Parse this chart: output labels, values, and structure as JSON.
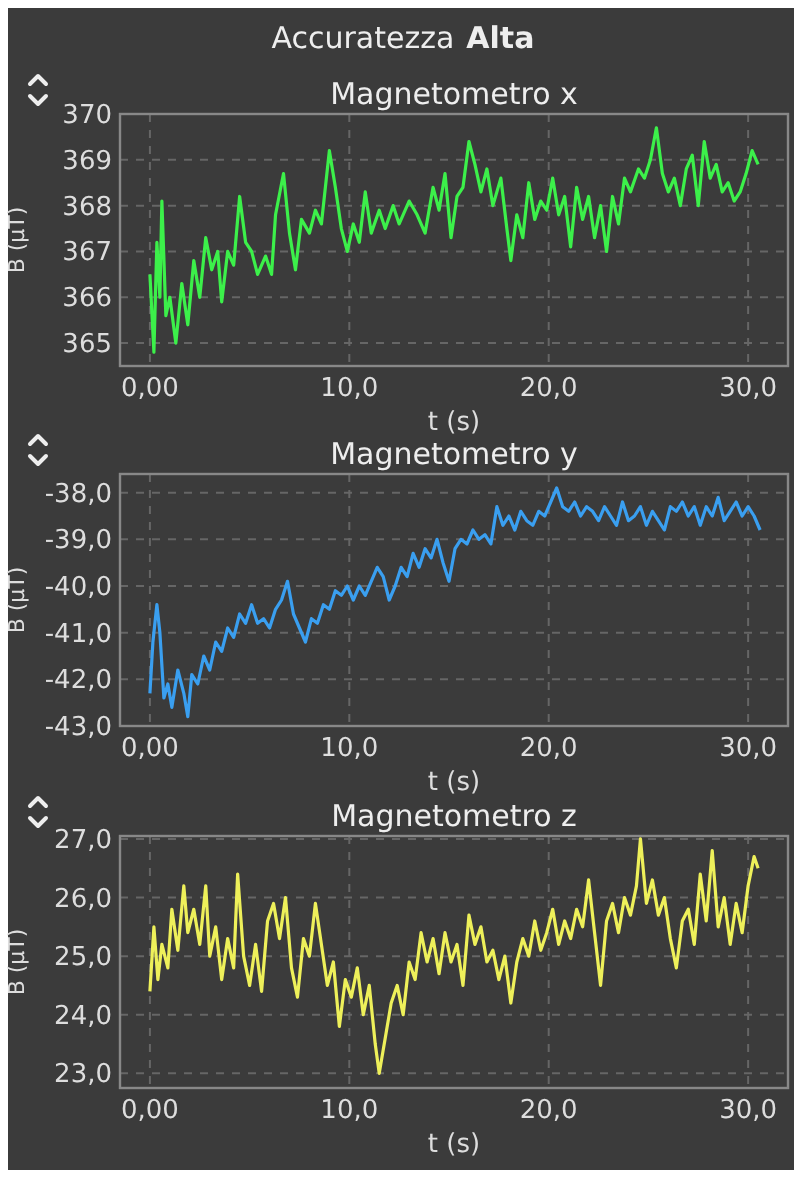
{
  "chart_data": [
    {
      "type": "line",
      "title": "Magnetometro x",
      "xlabel": "t (s)",
      "ylabel": "B (µT)",
      "annotations": [
        "Accuratezza",
        "Alta"
      ],
      "grid": true,
      "xlim": [
        -1.5,
        32
      ],
      "xticks": [
        {
          "value": 0,
          "label": "0,00"
        },
        {
          "value": 10,
          "label": "10,0"
        },
        {
          "value": 20,
          "label": "20,0"
        },
        {
          "value": 30,
          "label": "30,0"
        }
      ],
      "ylim": [
        364.5,
        370
      ],
      "yticks": [
        365,
        366,
        367,
        368,
        369,
        370
      ],
      "series": [
        {
          "color": "#3cf04a",
          "x": [
            0,
            0.2,
            0.35,
            0.5,
            0.6,
            0.8,
            1.0,
            1.3,
            1.6,
            1.9,
            2.2,
            2.5,
            2.8,
            3.1,
            3.4,
            3.6,
            3.9,
            4.2,
            4.5,
            4.8,
            5.1,
            5.4,
            5.8,
            6.1,
            6.3,
            6.7,
            7.0,
            7.3,
            7.6,
            8.0,
            8.3,
            8.6,
            9.0,
            9.3,
            9.6,
            9.9,
            10.2,
            10.5,
            10.8,
            11.1,
            11.5,
            11.8,
            12.2,
            12.5,
            13.0,
            13.4,
            13.8,
            14.2,
            14.5,
            14.8,
            15.1,
            15.4,
            15.7,
            16.0,
            16.3,
            16.6,
            16.9,
            17.2,
            17.6,
            17.9,
            18.1,
            18.4,
            18.7,
            19.0,
            19.3,
            19.6,
            19.9,
            20.2,
            20.5,
            20.8,
            21.1,
            21.4,
            21.7,
            22.0,
            22.3,
            22.6,
            22.9,
            23.2,
            23.5,
            23.8,
            24.1,
            24.5,
            24.8,
            25.1,
            25.4,
            25.7,
            26.0,
            26.3,
            26.6,
            26.9,
            27.2,
            27.5,
            27.8,
            28.1,
            28.4,
            28.7,
            29.0,
            29.3,
            29.6,
            29.9,
            30.2,
            30.5
          ],
          "values": [
            366.5,
            364.8,
            367.2,
            366.0,
            368.1,
            365.6,
            366.0,
            365.0,
            366.3,
            365.4,
            366.8,
            366.0,
            367.3,
            366.6,
            367.0,
            365.9,
            367.0,
            366.7,
            368.2,
            367.2,
            367.0,
            366.5,
            366.9,
            366.5,
            367.8,
            368.7,
            367.4,
            366.6,
            367.7,
            367.4,
            367.9,
            367.6,
            369.2,
            368.4,
            367.5,
            367.0,
            367.6,
            367.2,
            368.3,
            367.4,
            367.9,
            367.5,
            368.0,
            367.6,
            368.1,
            367.8,
            367.4,
            368.4,
            367.9,
            368.7,
            367.3,
            368.2,
            368.4,
            369.4,
            368.9,
            368.3,
            368.8,
            368.0,
            368.6,
            367.5,
            366.8,
            367.8,
            367.3,
            368.5,
            367.7,
            368.1,
            367.9,
            368.6,
            367.8,
            368.2,
            367.1,
            368.4,
            367.7,
            368.2,
            367.3,
            368.0,
            367.0,
            368.2,
            367.6,
            368.6,
            368.3,
            368.8,
            368.6,
            369.0,
            369.7,
            368.7,
            368.3,
            368.6,
            368.0,
            368.8,
            369.1,
            368.0,
            369.4,
            368.6,
            368.9,
            368.3,
            368.5,
            368.1,
            368.3,
            368.7,
            369.2,
            368.9
          ]
        }
      ]
    },
    {
      "type": "line",
      "title": "Magnetometro y",
      "xlabel": "t (s)",
      "ylabel": "B (µT)",
      "grid": true,
      "xlim": [
        -1.5,
        32
      ],
      "xticks": [
        {
          "value": 0,
          "label": "0,00"
        },
        {
          "value": 10,
          "label": "10,0"
        },
        {
          "value": 20,
          "label": "20,0"
        },
        {
          "value": 30,
          "label": "30,0"
        }
      ],
      "ylim": [
        -43,
        -37.6
      ],
      "yticks": [
        {
          "value": -43,
          "label": "-43,0"
        },
        {
          "value": -42,
          "label": "-42,0"
        },
        {
          "value": -41,
          "label": "-41,0"
        },
        {
          "value": -40,
          "label": "-40,0"
        },
        {
          "value": -39,
          "label": "-39,0"
        },
        {
          "value": -38,
          "label": "-38,0"
        }
      ],
      "series": [
        {
          "color": "#3a9ff0",
          "x": [
            0,
            0.15,
            0.35,
            0.5,
            0.7,
            0.9,
            1.1,
            1.4,
            1.7,
            1.9,
            2.1,
            2.4,
            2.7,
            3.0,
            3.3,
            3.6,
            3.9,
            4.2,
            4.5,
            4.8,
            5.1,
            5.4,
            5.7,
            6.0,
            6.3,
            6.6,
            6.9,
            7.2,
            7.5,
            7.8,
            8.1,
            8.4,
            8.7,
            9.0,
            9.3,
            9.6,
            9.9,
            10.2,
            10.5,
            10.8,
            11.1,
            11.4,
            11.7,
            12.0,
            12.3,
            12.6,
            12.9,
            13.2,
            13.5,
            13.8,
            14.1,
            14.4,
            14.7,
            15.0,
            15.3,
            15.6,
            15.9,
            16.2,
            16.5,
            16.8,
            17.1,
            17.4,
            17.7,
            18.0,
            18.3,
            18.6,
            18.9,
            19.2,
            19.5,
            19.8,
            20.1,
            20.4,
            20.7,
            21.0,
            21.3,
            21.6,
            21.9,
            22.2,
            22.5,
            22.8,
            23.1,
            23.4,
            23.7,
            24.0,
            24.3,
            24.6,
            24.9,
            25.2,
            25.5,
            25.8,
            26.1,
            26.4,
            26.7,
            27.0,
            27.3,
            27.6,
            27.9,
            28.2,
            28.5,
            28.8,
            29.1,
            29.4,
            29.7,
            30.0,
            30.3,
            30.6
          ],
          "values": [
            -42.3,
            -41.2,
            -40.4,
            -41.0,
            -42.4,
            -42.1,
            -42.6,
            -41.8,
            -42.3,
            -42.8,
            -41.9,
            -42.1,
            -41.5,
            -41.8,
            -41.2,
            -41.4,
            -40.9,
            -41.1,
            -40.6,
            -40.8,
            -40.4,
            -40.8,
            -40.7,
            -40.9,
            -40.5,
            -40.3,
            -39.9,
            -40.6,
            -40.9,
            -41.2,
            -40.7,
            -40.8,
            -40.4,
            -40.5,
            -40.1,
            -40.2,
            -40.0,
            -40.3,
            -40.0,
            -40.2,
            -39.9,
            -39.6,
            -39.8,
            -40.3,
            -40.0,
            -39.6,
            -39.8,
            -39.3,
            -39.6,
            -39.2,
            -39.4,
            -39.0,
            -39.5,
            -39.9,
            -39.2,
            -39.0,
            -39.1,
            -38.8,
            -39.0,
            -38.9,
            -39.1,
            -38.3,
            -38.7,
            -38.5,
            -38.8,
            -38.4,
            -38.6,
            -38.7,
            -38.4,
            -38.5,
            -38.2,
            -37.9,
            -38.3,
            -38.4,
            -38.2,
            -38.5,
            -38.3,
            -38.4,
            -38.6,
            -38.3,
            -38.5,
            -38.7,
            -38.2,
            -38.6,
            -38.5,
            -38.3,
            -38.7,
            -38.4,
            -38.6,
            -38.8,
            -38.3,
            -38.4,
            -38.2,
            -38.5,
            -38.3,
            -38.7,
            -38.3,
            -38.5,
            -38.1,
            -38.6,
            -38.4,
            -38.2,
            -38.5,
            -38.3,
            -38.5,
            -38.8
          ]
        }
      ]
    },
    {
      "type": "line",
      "title": "Magnetometro z",
      "xlabel": "t (s)",
      "ylabel": "B (µT)",
      "grid": true,
      "xlim": [
        -1.5,
        32
      ],
      "xticks": [
        {
          "value": 0,
          "label": "0,00"
        },
        {
          "value": 10,
          "label": "10,0"
        },
        {
          "value": 20,
          "label": "20,0"
        },
        {
          "value": 30,
          "label": "30,0"
        }
      ],
      "ylim": [
        22.75,
        27.05
      ],
      "yticks": [
        {
          "value": 23,
          "label": "23,0"
        },
        {
          "value": 24,
          "label": "24,0"
        },
        {
          "value": 25,
          "label": "25,0"
        },
        {
          "value": 26,
          "label": "26,0"
        },
        {
          "value": 27,
          "label": "27,0"
        }
      ],
      "series": [
        {
          "color": "#eef05a",
          "x": [
            0,
            0.2,
            0.4,
            0.6,
            0.9,
            1.1,
            1.4,
            1.7,
            1.9,
            2.2,
            2.5,
            2.8,
            3.0,
            3.3,
            3.6,
            3.9,
            4.2,
            4.4,
            4.7,
            5.0,
            5.3,
            5.6,
            5.9,
            6.2,
            6.5,
            6.8,
            7.1,
            7.4,
            7.7,
            8.0,
            8.3,
            8.6,
            8.9,
            9.2,
            9.5,
            9.8,
            10.1,
            10.4,
            10.7,
            11.0,
            11.3,
            11.5,
            11.8,
            12.1,
            12.4,
            12.7,
            13.0,
            13.3,
            13.6,
            13.9,
            14.2,
            14.5,
            14.8,
            15.1,
            15.4,
            15.7,
            16.0,
            16.3,
            16.6,
            16.9,
            17.2,
            17.5,
            17.8,
            18.1,
            18.4,
            18.7,
            19.0,
            19.3,
            19.6,
            19.9,
            20.2,
            20.5,
            20.8,
            21.1,
            21.4,
            21.7,
            22.0,
            22.3,
            22.6,
            22.9,
            23.2,
            23.5,
            23.8,
            24.1,
            24.4,
            24.6,
            24.9,
            25.2,
            25.5,
            25.8,
            26.1,
            26.4,
            26.7,
            27.0,
            27.3,
            27.6,
            27.9,
            28.2,
            28.5,
            28.8,
            29.1,
            29.4,
            29.7,
            30.0,
            30.3,
            30.5
          ],
          "values": [
            24.4,
            25.5,
            24.6,
            25.2,
            24.8,
            25.8,
            25.1,
            26.2,
            25.4,
            25.8,
            25.2,
            26.2,
            25.0,
            25.5,
            24.6,
            25.3,
            24.8,
            26.4,
            25.0,
            24.5,
            25.2,
            24.4,
            25.6,
            25.9,
            25.3,
            26.0,
            24.8,
            24.3,
            25.3,
            25.0,
            25.9,
            25.2,
            24.5,
            24.9,
            23.8,
            24.6,
            24.3,
            24.8,
            24.0,
            24.5,
            23.5,
            23.0,
            23.6,
            24.2,
            24.5,
            24.0,
            24.9,
            24.6,
            25.4,
            24.9,
            25.3,
            24.7,
            25.4,
            24.9,
            25.2,
            24.5,
            25.7,
            25.2,
            25.5,
            24.9,
            25.1,
            24.6,
            25.0,
            24.2,
            24.9,
            25.3,
            25.0,
            25.6,
            25.1,
            25.4,
            25.8,
            25.2,
            25.6,
            25.3,
            25.8,
            25.5,
            26.3,
            25.4,
            24.5,
            25.6,
            25.9,
            25.4,
            26.0,
            25.7,
            26.2,
            27.0,
            25.9,
            26.3,
            25.7,
            26.0,
            25.3,
            24.8,
            25.6,
            25.8,
            25.2,
            26.4,
            25.6,
            26.8,
            25.5,
            26.0,
            25.2,
            25.9,
            25.4,
            26.2,
            26.7,
            26.5
          ]
        }
      ]
    }
  ]
}
